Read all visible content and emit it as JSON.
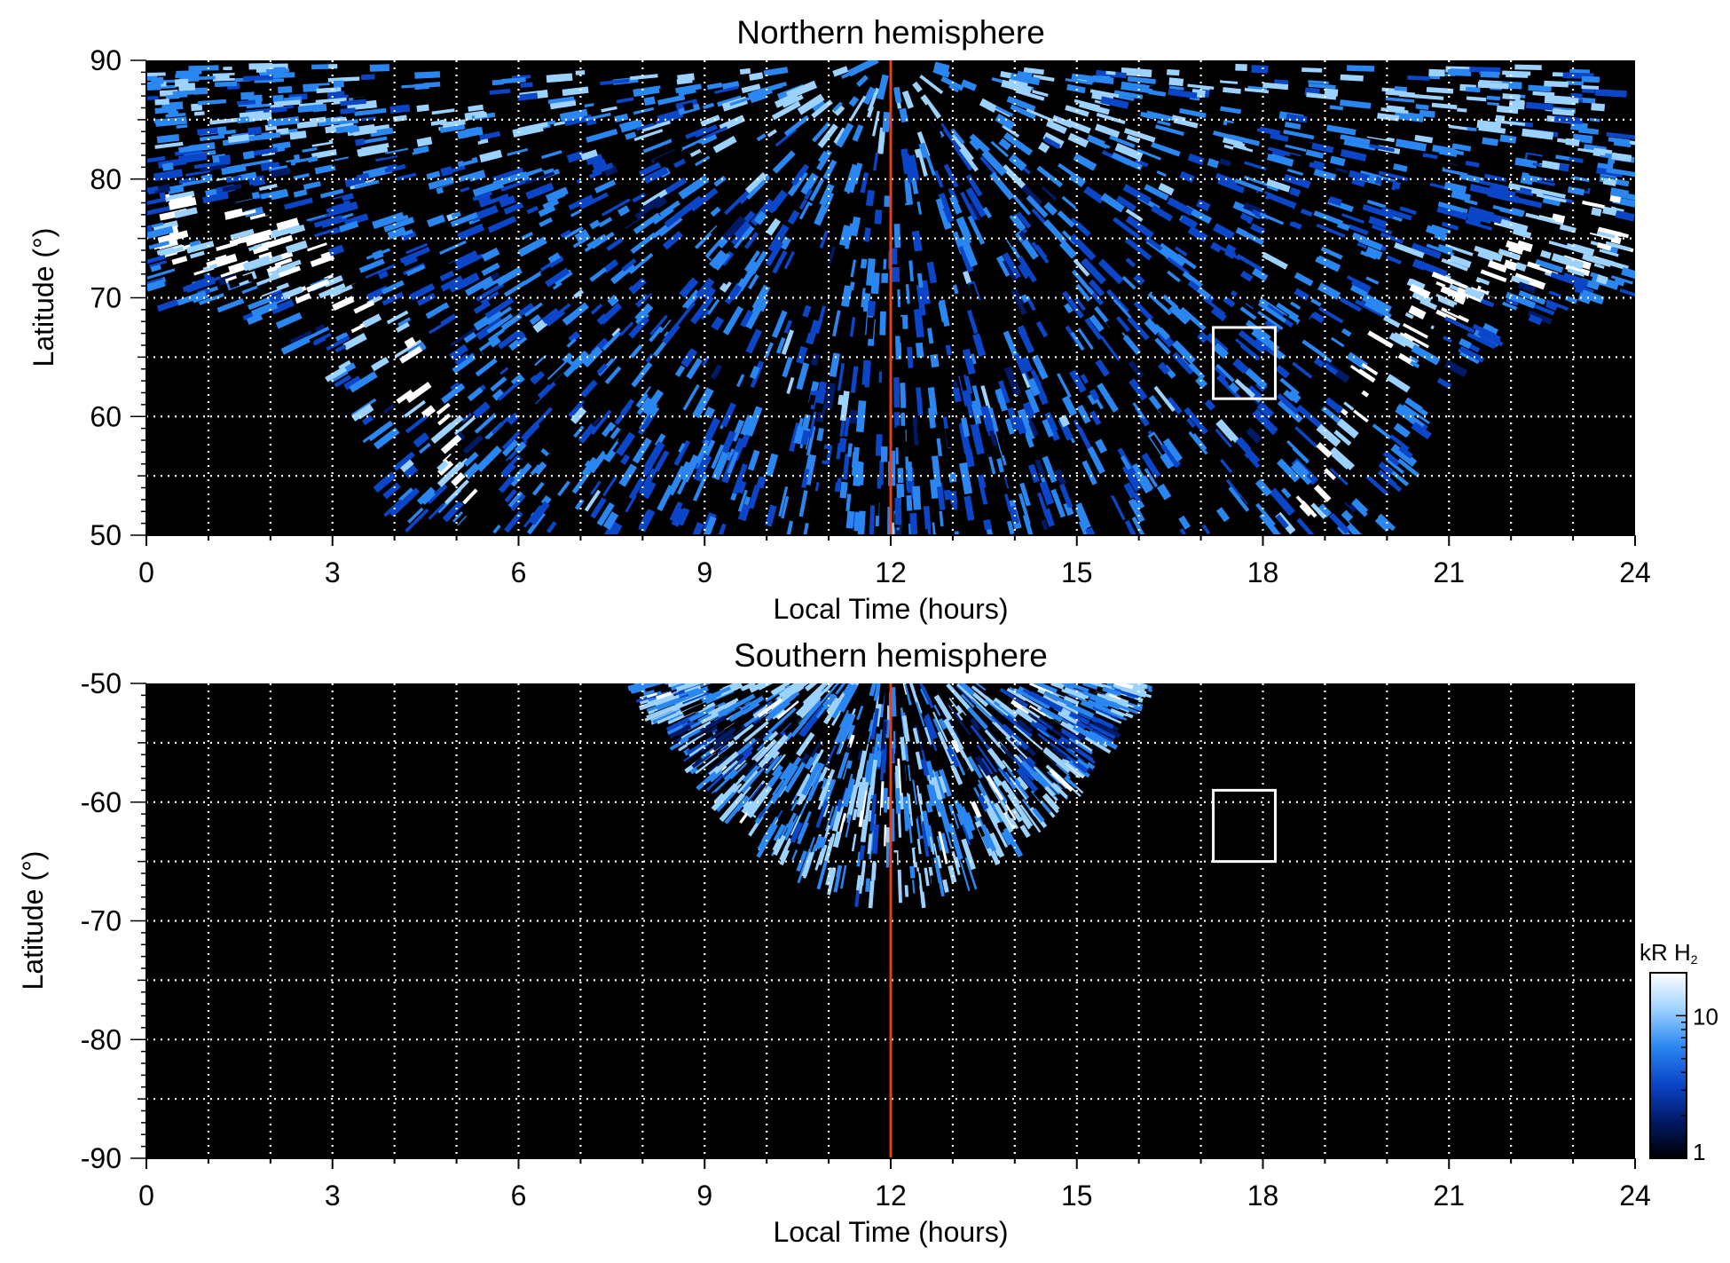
{
  "chart_data": [
    {
      "type": "heatmap",
      "title": "Northern hemisphere",
      "xlabel": "Local Time (hours)",
      "ylabel": "Latitude (°)",
      "xlim": [
        0,
        24
      ],
      "ylim": [
        50,
        90
      ],
      "xticks": [
        "0",
        "3",
        "6",
        "9",
        "12",
        "15",
        "18",
        "21",
        "24"
      ],
      "yticks": [
        "50",
        "60",
        "70",
        "80",
        "90"
      ],
      "grid": true,
      "noon_line_lt": 12,
      "noon_line_color": "#e0401c",
      "box": {
        "lt": [
          17.2,
          18.2
        ],
        "lat": [
          61.5,
          67.5
        ]
      },
      "coverage": {
        "description_points_lt_minlat": [
          [
            0,
            69.5
          ],
          [
            1,
            69
          ],
          [
            2,
            67.5
          ],
          [
            3,
            63.5
          ],
          [
            3.5,
            58
          ],
          [
            4,
            50
          ],
          [
            20,
            50
          ],
          [
            20.5,
            58
          ],
          [
            21,
            63.5
          ],
          [
            22,
            67.5
          ],
          [
            23,
            69
          ],
          [
            24,
            69.5
          ]
        ]
      },
      "bright_oval": {
        "dawn": [
          [
            0.2,
            76
          ],
          [
            2.5,
            73
          ],
          [
            4,
            66
          ],
          [
            5,
            56
          ],
          [
            5.3,
            50
          ]
        ],
        "dusk": [
          [
            18.7,
            50
          ],
          [
            19,
            56
          ],
          [
            20,
            66
          ],
          [
            21.5,
            73
          ],
          [
            23.8,
            76
          ]
        ]
      }
    },
    {
      "type": "heatmap",
      "title": "Southern hemisphere",
      "xlabel": "Local Time (hours)",
      "ylabel": "Latitude (°)",
      "xlim": [
        0,
        24
      ],
      "ylim": [
        -90,
        -50
      ],
      "xticks": [
        "0",
        "3",
        "6",
        "9",
        "12",
        "15",
        "18",
        "21",
        "24"
      ],
      "yticks": [
        "-90",
        "-80",
        "-70",
        "-60",
        "-50"
      ],
      "grid": true,
      "noon_line_lt": 12,
      "noon_line_color": "#e0401c",
      "box": {
        "lt": [
          17.2,
          18.2
        ],
        "lat": [
          -65,
          -59
        ]
      },
      "coverage": {
        "lt_range": [
          8,
          16
        ],
        "min_lat_at_noon": -68,
        "top_lat": -50
      }
    }
  ],
  "colorbar": {
    "label_kr": "kR H",
    "label_sub": "2",
    "ticks": [
      "1",
      "10"
    ],
    "scale": "log",
    "range": [
      1,
      20
    ],
    "colors": [
      "#000000",
      "#001a66",
      "#0b45c8",
      "#2a86f0",
      "#9cd2ff",
      "#ffffff"
    ]
  }
}
